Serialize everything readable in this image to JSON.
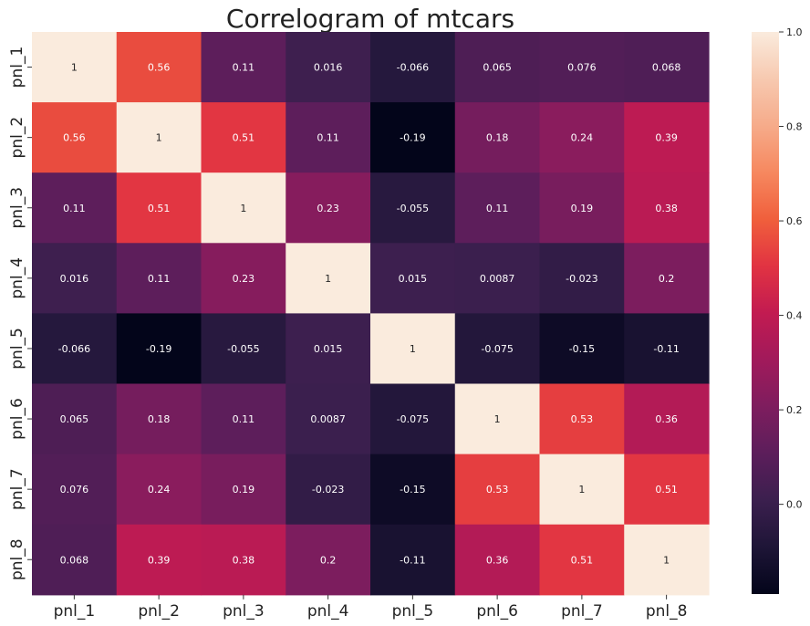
{
  "chart_data": {
    "type": "heatmap",
    "title": "Correlogram of mtcars",
    "x_labels": [
      "pnl_1",
      "pnl_2",
      "pnl_3",
      "pnl_4",
      "pnl_5",
      "pnl_6",
      "pnl_7",
      "pnl_8"
    ],
    "y_labels": [
      "pnl_1",
      "pnl_2",
      "pnl_3",
      "pnl_4",
      "pnl_5",
      "pnl_6",
      "pnl_7",
      "pnl_8"
    ],
    "matrix": [
      [
        1,
        0.56,
        0.11,
        0.016,
        -0.066,
        0.065,
        0.076,
        0.068
      ],
      [
        0.56,
        1,
        0.51,
        0.11,
        -0.19,
        0.18,
        0.24,
        0.39
      ],
      [
        0.11,
        0.51,
        1,
        0.23,
        -0.055,
        0.11,
        0.19,
        0.38
      ],
      [
        0.016,
        0.11,
        0.23,
        1,
        0.015,
        0.0087,
        -0.023,
        0.2
      ],
      [
        -0.066,
        -0.19,
        -0.055,
        0.015,
        1,
        -0.075,
        -0.15,
        -0.11
      ],
      [
        0.065,
        0.18,
        0.11,
        0.0087,
        -0.075,
        1,
        0.53,
        0.36
      ],
      [
        0.076,
        0.24,
        0.19,
        -0.023,
        -0.15,
        0.53,
        1,
        0.51
      ],
      [
        0.068,
        0.39,
        0.38,
        0.2,
        -0.11,
        0.36,
        0.51,
        1
      ]
    ],
    "annotations": [
      [
        "1",
        "0.56",
        "0.11",
        "0.016",
        "-0.066",
        "0.065",
        "0.076",
        "0.068"
      ],
      [
        "0.56",
        "1",
        "0.51",
        "0.11",
        "-0.19",
        "0.18",
        "0.24",
        "0.39"
      ],
      [
        "0.11",
        "0.51",
        "1",
        "0.23",
        "-0.055",
        "0.11",
        "0.19",
        "0.38"
      ],
      [
        "0.016",
        "0.11",
        "0.23",
        "1",
        "0.015",
        "0.0087",
        "-0.023",
        "0.2"
      ],
      [
        "-0.066",
        "-0.19",
        "-0.055",
        "0.015",
        "1",
        "-0.075",
        "-0.15",
        "-0.11"
      ],
      [
        "0.065",
        "0.18",
        "0.11",
        "0.0087",
        "-0.075",
        "1",
        "0.53",
        "0.36"
      ],
      [
        "0.076",
        "0.24",
        "0.19",
        "-0.023",
        "-0.15",
        "0.53",
        "1",
        "0.51"
      ],
      [
        "0.068",
        "0.39",
        "0.38",
        "0.2",
        "-0.11",
        "0.36",
        "0.51",
        "1"
      ]
    ],
    "colorbar": {
      "colormap": "rocket",
      "vmin": -0.19,
      "vmax": 1,
      "ticks": [
        1.0,
        0.8,
        0.6,
        0.4,
        0.2,
        0.0
      ],
      "tick_labels": [
        "1.0",
        "0.8",
        "0.6",
        "0.4",
        "0.2",
        "0.0"
      ],
      "colors": [
        "#03051a",
        "#1e1537",
        "#3b1f4e",
        "#5c1e5b",
        "#7e1d5e",
        "#a11a5b",
        "#c21b51",
        "#e13342",
        "#f05f3c",
        "#f6885f",
        "#f6ab8a",
        "#f7c9b0",
        "#faebdd"
      ]
    },
    "grid": false,
    "legend": "none"
  }
}
